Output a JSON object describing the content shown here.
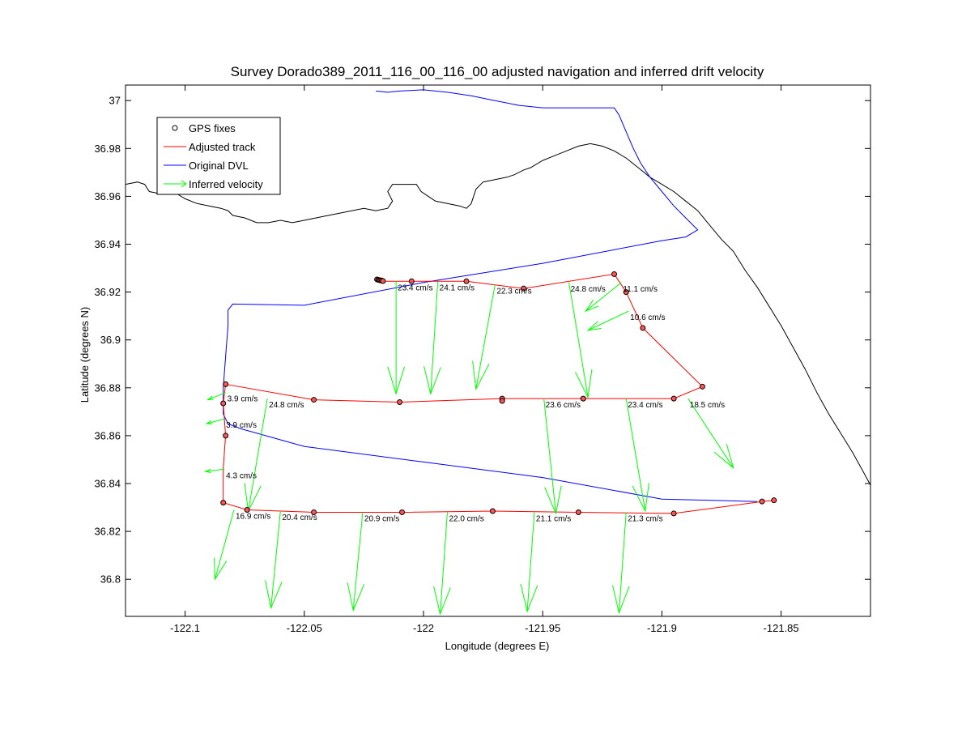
{
  "chart_data": {
    "type": "line",
    "title": "Survey Dorado389_2011_116_00_116_00 adjusted navigation and inferred drift velocity",
    "xlabel": "Longitude (degrees E)",
    "ylabel": "Latitude (degrees N)",
    "xlim": [
      -122.125,
      -121.8125
    ],
    "ylim": [
      36.7845,
      37.0065
    ],
    "xticks": [
      -122.1,
      -122.05,
      -122,
      -121.95,
      -121.9,
      -121.85
    ],
    "xtick_labels": [
      "-122.1",
      "-122.05",
      "-122",
      "-121.95",
      "-121.9",
      "-121.85"
    ],
    "yticks": [
      36.8,
      36.82,
      36.84,
      36.86,
      36.88,
      36.9,
      36.92,
      36.94,
      36.96,
      36.98,
      37
    ],
    "ytick_labels": [
      "36.8",
      "36.82",
      "36.84",
      "36.86",
      "36.88",
      "36.9",
      "36.92",
      "36.94",
      "36.96",
      "36.98",
      "37"
    ],
    "grid": false,
    "legend_position": "top-left",
    "colors": {
      "gps": "#000000",
      "adjusted": "#ff0000",
      "dvl": "#0000ff",
      "velocity": "#00ff00",
      "coast": "#000000"
    },
    "legend": [
      {
        "key": "gps",
        "label": "GPS fixes"
      },
      {
        "key": "adjusted",
        "label": "Adjusted track"
      },
      {
        "key": "dvl",
        "label": "Original DVL"
      },
      {
        "key": "velocity",
        "label": "Inferred velocity"
      }
    ],
    "coastline": [
      [
        -122.125,
        36.965
      ],
      [
        -122.12,
        36.966
      ],
      [
        -122.117,
        36.965
      ],
      [
        -122.115,
        36.962
      ],
      [
        -122.11,
        36.961
      ],
      [
        -122.105,
        36.962
      ],
      [
        -122.1,
        36.959
      ],
      [
        -122.095,
        36.957
      ],
      [
        -122.09,
        36.956
      ],
      [
        -122.085,
        36.955
      ],
      [
        -122.082,
        36.954
      ],
      [
        -122.08,
        36.952
      ],
      [
        -122.075,
        36.951
      ],
      [
        -122.07,
        36.949
      ],
      [
        -122.065,
        36.949
      ],
      [
        -122.06,
        36.95
      ],
      [
        -122.055,
        36.949
      ],
      [
        -122.05,
        36.95
      ],
      [
        -122.045,
        36.951
      ],
      [
        -122.04,
        36.952
      ],
      [
        -122.035,
        36.953
      ],
      [
        -122.03,
        36.954
      ],
      [
        -122.025,
        36.955
      ],
      [
        -122.02,
        36.954
      ],
      [
        -122.015,
        36.955
      ],
      [
        -122.013,
        36.958
      ],
      [
        -122.015,
        36.962
      ],
      [
        -122.013,
        36.965
      ],
      [
        -122.008,
        36.965
      ],
      [
        -122.003,
        36.965
      ],
      [
        -122.001,
        36.962
      ],
      [
        -121.998,
        36.96
      ],
      [
        -121.995,
        36.958
      ],
      [
        -121.99,
        36.957
      ],
      [
        -121.985,
        36.956
      ],
      [
        -121.982,
        36.955
      ],
      [
        -121.98,
        36.957
      ],
      [
        -121.978,
        36.963
      ],
      [
        -121.975,
        36.966
      ],
      [
        -121.97,
        36.967
      ],
      [
        -121.965,
        36.968
      ],
      [
        -121.962,
        36.969
      ],
      [
        -121.958,
        36.971
      ],
      [
        -121.955,
        36.972
      ],
      [
        -121.95,
        36.975
      ],
      [
        -121.945,
        36.977
      ],
      [
        -121.94,
        36.979
      ],
      [
        -121.935,
        36.981
      ],
      [
        -121.93,
        36.982
      ],
      [
        -121.925,
        36.981
      ],
      [
        -121.92,
        36.979
      ],
      [
        -121.915,
        36.976
      ],
      [
        -121.91,
        36.972
      ],
      [
        -121.905,
        36.968
      ],
      [
        -121.9,
        36.965
      ],
      [
        -121.895,
        36.962
      ],
      [
        -121.89,
        36.958
      ],
      [
        -121.885,
        36.954
      ],
      [
        -121.88,
        36.948
      ],
      [
        -121.875,
        36.942
      ],
      [
        -121.87,
        36.937
      ],
      [
        -121.865,
        36.929
      ],
      [
        -121.86,
        36.922
      ],
      [
        -121.855,
        36.914
      ],
      [
        -121.85,
        36.906
      ],
      [
        -121.845,
        36.897
      ],
      [
        -121.84,
        36.888
      ],
      [
        -121.835,
        36.878
      ],
      [
        -121.83,
        36.869
      ],
      [
        -121.825,
        36.861
      ],
      [
        -121.82,
        36.853
      ],
      [
        -121.815,
        36.844
      ],
      [
        -121.8125,
        36.8393
      ]
    ],
    "original_dvl": [
      [
        -122.02,
        37.004
      ],
      [
        -122.015,
        37.0035
      ],
      [
        -122.01,
        37.004
      ],
      [
        -122.0,
        37.0045
      ],
      [
        -121.99,
        37.0035
      ],
      [
        -121.98,
        37.002
      ],
      [
        -121.97,
        37.0
      ],
      [
        -121.96,
        36.998
      ],
      [
        -121.95,
        36.997
      ],
      [
        -121.94,
        36.997
      ],
      [
        -121.93,
        36.997
      ],
      [
        -121.925,
        36.997
      ],
      [
        -121.92,
        36.997
      ],
      [
        -121.918,
        36.994
      ],
      [
        -121.915,
        36.987
      ],
      [
        -121.912,
        36.98
      ],
      [
        -121.909,
        36.974
      ],
      [
        -121.905,
        36.968
      ],
      [
        -121.9,
        36.962
      ],
      [
        -121.895,
        36.956
      ],
      [
        -121.89,
        36.951
      ],
      [
        -121.885,
        36.946
      ],
      [
        -121.89,
        36.943
      ],
      [
        -121.9,
        36.9415
      ],
      [
        -121.95,
        36.932
      ],
      [
        -122.0,
        36.924
      ],
      [
        -122.05,
        36.9145
      ],
      [
        -122.08,
        36.915
      ],
      [
        -122.082,
        36.9125
      ],
      [
        -122.082,
        36.906
      ],
      [
        -122.083,
        36.893
      ],
      [
        -122.084,
        36.88
      ],
      [
        -122.084,
        36.869
      ],
      [
        -122.082,
        36.865
      ],
      [
        -122.077,
        36.863
      ],
      [
        -122.05,
        36.8555
      ],
      [
        -122.0,
        36.849
      ],
      [
        -121.95,
        36.8425
      ],
      [
        -121.9,
        36.8335
      ],
      [
        -121.86,
        36.8325
      ]
    ],
    "adjusted_track": [
      [
        -122.02,
        36.9245
      ],
      [
        -122.005,
        36.9245
      ],
      [
        -121.982,
        36.9245
      ],
      [
        -121.958,
        36.9215
      ],
      [
        -121.92,
        36.9275
      ],
      [
        -121.915,
        36.92
      ],
      [
        -121.908,
        36.905
      ],
      [
        -121.883,
        36.8805
      ],
      [
        -121.895,
        36.8755
      ],
      [
        -121.933,
        36.8755
      ],
      [
        -121.967,
        36.8755
      ],
      [
        -122.01,
        36.874
      ],
      [
        -122.046,
        36.875
      ],
      [
        -122.083,
        36.8815
      ],
      [
        -122.084,
        36.8735
      ],
      [
        -122.083,
        36.86
      ],
      [
        -122.084,
        36.8465
      ],
      [
        -122.084,
        36.832
      ],
      [
        -122.074,
        36.829
      ],
      [
        -122.046,
        36.828
      ],
      [
        -122.009,
        36.828
      ],
      [
        -121.971,
        36.8285
      ],
      [
        -121.935,
        36.828
      ],
      [
        -121.895,
        36.8275
      ],
      [
        -121.858,
        36.8325
      ],
      [
        -121.853,
        36.833
      ]
    ],
    "gps_fixes": [
      [
        -122.0195,
        36.9253
      ],
      [
        -122.019,
        36.9251
      ],
      [
        -122.0185,
        36.925
      ],
      [
        -122.018,
        36.9249
      ],
      [
        -122.0175,
        36.9248
      ],
      [
        -122.017,
        36.9246
      ],
      [
        -122.005,
        36.9245
      ],
      [
        -121.982,
        36.9245
      ],
      [
        -121.958,
        36.9215
      ],
      [
        -121.92,
        36.9275
      ],
      [
        -121.915,
        36.92
      ],
      [
        -121.908,
        36.905
      ],
      [
        -121.883,
        36.8805
      ],
      [
        -121.895,
        36.8755
      ],
      [
        -121.933,
        36.8755
      ],
      [
        -121.967,
        36.8755
      ],
      [
        -121.967,
        36.8745
      ],
      [
        -122.01,
        36.874
      ],
      [
        -122.046,
        36.875
      ],
      [
        -122.083,
        36.8815
      ],
      [
        -122.084,
        36.8735
      ],
      [
        -122.083,
        36.86
      ],
      [
        -122.084,
        36.832
      ],
      [
        -122.074,
        36.829
      ],
      [
        -122.046,
        36.828
      ],
      [
        -122.009,
        36.828
      ],
      [
        -121.971,
        36.8285
      ],
      [
        -121.935,
        36.828
      ],
      [
        -121.895,
        36.8275
      ],
      [
        -121.858,
        36.8325
      ],
      [
        -121.853,
        36.833
      ]
    ],
    "velocity_arrows": [
      {
        "x0": -122.0115,
        "y0": 36.9245,
        "x1": -122.0115,
        "y1": 36.8775,
        "label": "23.4 cm/s"
      },
      {
        "x0": -121.994,
        "y0": 36.9245,
        "x1": -121.997,
        "y1": 36.8775,
        "label": "24.1 cm/s"
      },
      {
        "x0": -121.97,
        "y0": 36.923,
        "x1": -121.978,
        "y1": 36.8795,
        "label": "22.3 cm/s"
      },
      {
        "x0": -121.939,
        "y0": 36.924,
        "x1": -121.931,
        "y1": 36.876,
        "label": "24.8 cm/s"
      },
      {
        "x0": -121.917,
        "y0": 36.924,
        "x1": -121.932,
        "y1": 36.912,
        "label": "11.1 cm/s"
      },
      {
        "x0": -121.914,
        "y0": 36.912,
        "x1": -121.931,
        "y1": 36.904,
        "label": "10.6 cm/s"
      },
      {
        "x0": -122.083,
        "y0": 36.878,
        "x1": -122.0905,
        "y1": 36.875,
        "label": "3.9 cm/s"
      },
      {
        "x0": -122.0835,
        "y0": 36.867,
        "x1": -122.091,
        "y1": 36.865,
        "label": "3.9 cm/s"
      },
      {
        "x0": -122.0835,
        "y0": 36.846,
        "x1": -122.0915,
        "y1": 36.845,
        "label": "4.3 cm/s"
      },
      {
        "x0": -122.0655,
        "y0": 36.8755,
        "x1": -122.0735,
        "y1": 36.8285,
        "label": "24.8 cm/s"
      },
      {
        "x0": -121.9495,
        "y0": 36.8755,
        "x1": -121.9445,
        "y1": 36.8275,
        "label": "23.6 cm/s"
      },
      {
        "x0": -121.915,
        "y0": 36.8755,
        "x1": -121.907,
        "y1": 36.8285,
        "label": "23.4 cm/s"
      },
      {
        "x0": -121.889,
        "y0": 36.8755,
        "x1": -121.87,
        "y1": 36.8465,
        "label": "18.5 cm/s"
      },
      {
        "x0": -122.0795,
        "y0": 36.829,
        "x1": -122.0875,
        "y1": 36.8,
        "label": "16.9 cm/s"
      },
      {
        "x0": -122.06,
        "y0": 36.8285,
        "x1": -122.064,
        "y1": 36.788,
        "label": "20.4 cm/s"
      },
      {
        "x0": -122.0255,
        "y0": 36.828,
        "x1": -122.0295,
        "y1": 36.787,
        "label": "20.9 cm/s"
      },
      {
        "x0": -121.99,
        "y0": 36.828,
        "x1": -121.993,
        "y1": 36.7855,
        "label": "22.0 cm/s"
      },
      {
        "x0": -121.9535,
        "y0": 36.828,
        "x1": -121.9565,
        "y1": 36.7865,
        "label": "21.1 cm/s"
      },
      {
        "x0": -121.915,
        "y0": 36.828,
        "x1": -121.918,
        "y1": 36.786,
        "label": "21.3 cm/s"
      }
    ]
  }
}
